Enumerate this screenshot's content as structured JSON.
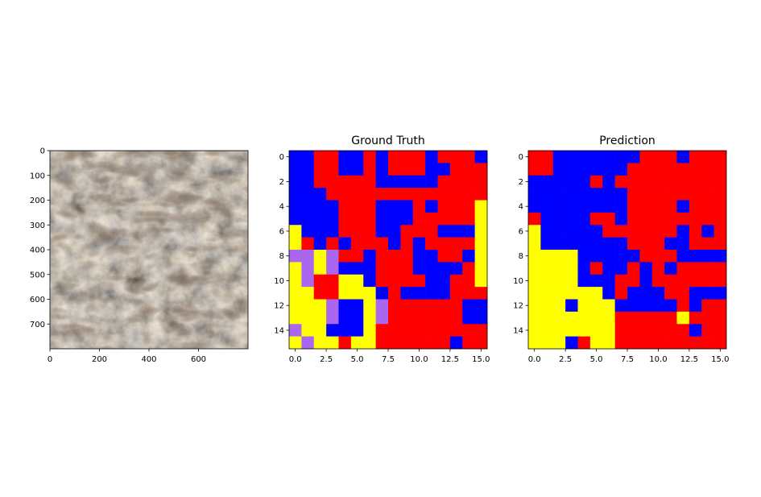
{
  "chart_data": [
    {
      "type": "image",
      "title": "",
      "xlim": [
        0,
        800
      ],
      "ylim": [
        800,
        0
      ],
      "x_ticks": [
        "0",
        "200",
        "400",
        "600"
      ],
      "y_ticks": [
        "0",
        "100",
        "200",
        "300",
        "400",
        "500",
        "600",
        "700"
      ],
      "content": "satellite terrain image"
    },
    {
      "type": "heatmap",
      "title": "Ground Truth",
      "xlim": [
        -0.5,
        15.5
      ],
      "ylim": [
        15.5,
        -0.5
      ],
      "x_ticks": [
        "0.0",
        "2.5",
        "5.0",
        "7.5",
        "10.0",
        "12.5",
        "15.0"
      ],
      "y_ticks": [
        "0",
        "2",
        "4",
        "6",
        "8",
        "10",
        "12",
        "14"
      ],
      "color_map": {
        "B": "#0000ff",
        "R": "#ff0000",
        "Y": "#ffff00",
        "P": "#aa66ee"
      },
      "grid": [
        "BBRRBBRBRRRBRRRB",
        "BBRRBBRBRRRBBRRR",
        "BBRRRRRBBBBBRRRR",
        "BBBRRRRRRRRRRRRR",
        "BBBBRRRBBBRBRRRY",
        "BBBBRRRBBBRRRRRY",
        "YBBBRRRBBRRRBBBY",
        "YRBRBRRRBRBRRRRY",
        "PPYPRRBRRRBBRRBY",
        "YPYPBBBRRRBBBBRY",
        "YPRRYYBRRRRBBRRY",
        "YYRRYYYBRBBBBRRR",
        "YYYPBBYPRRRRRRBB",
        "YYYPBBYPRRRRRRBB",
        "PYYBBBYRRRRRRRRR",
        "YPYYRYYRRRRRRBRR"
      ]
    },
    {
      "type": "heatmap",
      "title": "Prediction",
      "xlim": [
        -0.5,
        15.5
      ],
      "ylim": [
        15.5,
        -0.5
      ],
      "x_ticks": [
        "0.0",
        "2.5",
        "5.0",
        "7.5",
        "10.0",
        "12.5",
        "15.0"
      ],
      "y_ticks": [
        "0",
        "2",
        "4",
        "6",
        "8",
        "10",
        "12",
        "14"
      ],
      "color_map": {
        "B": "#0000ff",
        "R": "#ff0000",
        "Y": "#ffff00",
        "P": "#aa66ee"
      },
      "grid": [
        "RRBBBBBBBRRRBRRR",
        "RRBBBBBBRRRRRRRR",
        "BBBBBRBRRRRRRRRR",
        "BBBBBBBBRRRRRRRR",
        "BBBBBBBBRRRRBRRR",
        "RBBBBRRBRRRRRRRR",
        "YBBBBBRRRRRRBRBR",
        "YBBBBBBBRRRBBRRR",
        "YYYYBBBBBRRRBBBB",
        "YYYYBRBBRBRBRRRR",
        "YYYYBBBRRBRRRRRR",
        "YYYYYYBRBBBRRBBB",
        "YYYBYYYBBBBBRBRR",
        "YYYYYYYRRRRRYRRR",
        "YYYYYYYRRRRRRBRR",
        "YYYBRYYRRRRRRRRR"
      ]
    }
  ]
}
